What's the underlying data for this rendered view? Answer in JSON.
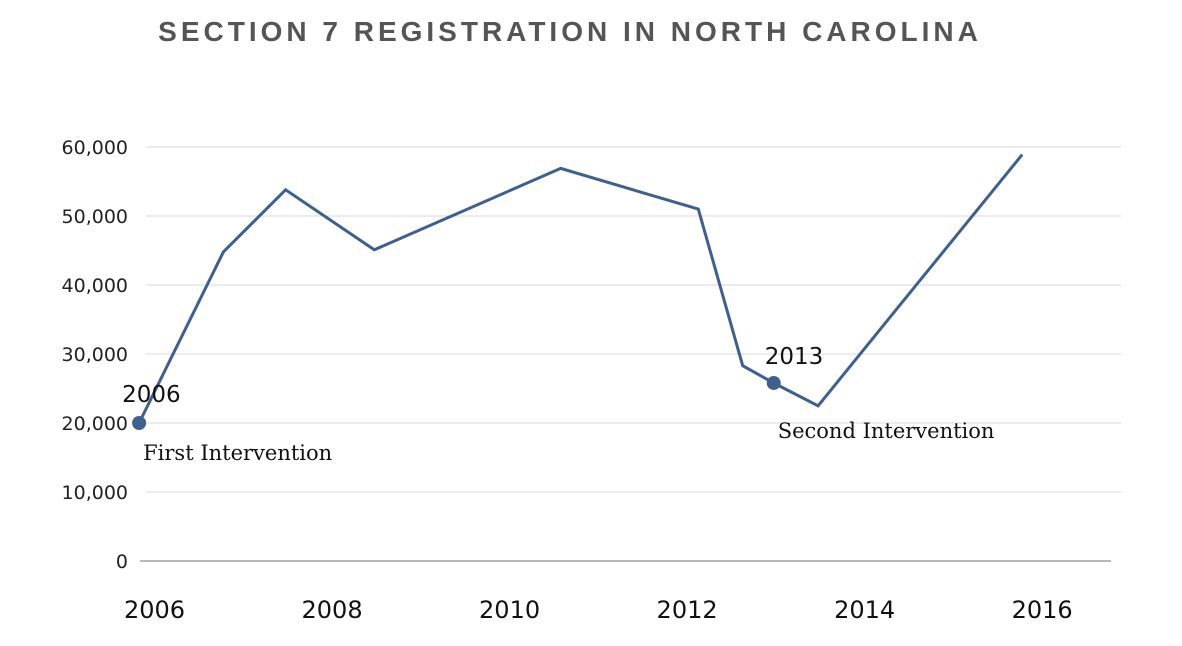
{
  "chart_data": {
    "type": "line",
    "title": "SECTION 7 REGISTRATION IN NORTH CAROLINA",
    "xlabel": "",
    "ylabel": "",
    "xlim": [
      2005.96,
      2016.9
    ],
    "ylim": [
      0,
      60000
    ],
    "grid": true,
    "x_ticks": [
      2006,
      2008,
      2010,
      2012,
      2014,
      2016
    ],
    "x_tick_labels": [
      "2006",
      "2008",
      "2010",
      "2012",
      "2014",
      "2016"
    ],
    "y_ticks": [
      0,
      10000,
      20000,
      30000,
      40000,
      50000,
      60000
    ],
    "y_tick_labels": [
      "0",
      "10,000",
      "20,000",
      "30,000",
      "40,000",
      "50,000",
      "60,000"
    ],
    "line_color": "#3d6090",
    "series": [
      {
        "x": [
          2005.95,
          2006.9,
          2007.6,
          2008.6,
          2010.7,
          2012.25,
          2012.75,
          2013.1,
          2013.6,
          2015.9
        ],
        "values": [
          20000,
          44800,
          53800,
          45100,
          56900,
          51000,
          28300,
          25800,
          22500,
          58900
        ]
      }
    ],
    "annotations": [
      {
        "x": 2005.95,
        "y": 20000,
        "year": "2006",
        "label": "First Intervention"
      },
      {
        "x": 2013.1,
        "y": 25800,
        "year": "2013",
        "label": "Second Intervention"
      }
    ]
  }
}
